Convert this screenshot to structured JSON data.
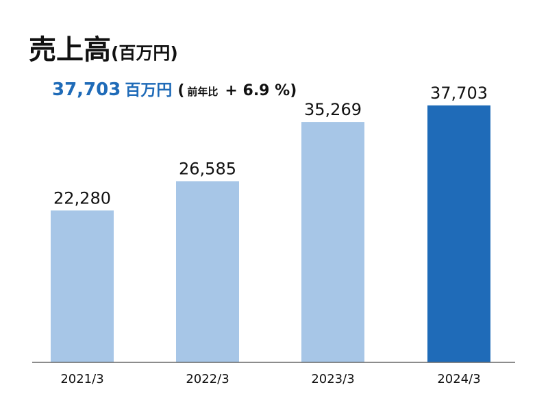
{
  "header": {
    "title": "売上高",
    "title_unit": "(百万円)",
    "summary_value": "37,703",
    "summary_unit": "百万円",
    "summary_open": "(",
    "yoy_label": "前年比",
    "yoy_value": "+ 6.9 %)"
  },
  "colors": {
    "past_bar": "#a7c6e7",
    "current_bar": "#1f6bb8",
    "accent_text": "#1f6bb8",
    "axis": "#666666"
  },
  "chart_data": {
    "type": "bar",
    "title": "売上高",
    "unit": "百万円",
    "categories": [
      "2021/3",
      "2022/3",
      "2023/3",
      "2024/3"
    ],
    "values": [
      22280,
      26585,
      35269,
      37703
    ],
    "value_labels": [
      "22,280",
      "26,585",
      "35,269",
      "37,703"
    ],
    "highlight_index": 3,
    "ylim": [
      0,
      40000
    ],
    "grid": false,
    "legend": "none"
  }
}
